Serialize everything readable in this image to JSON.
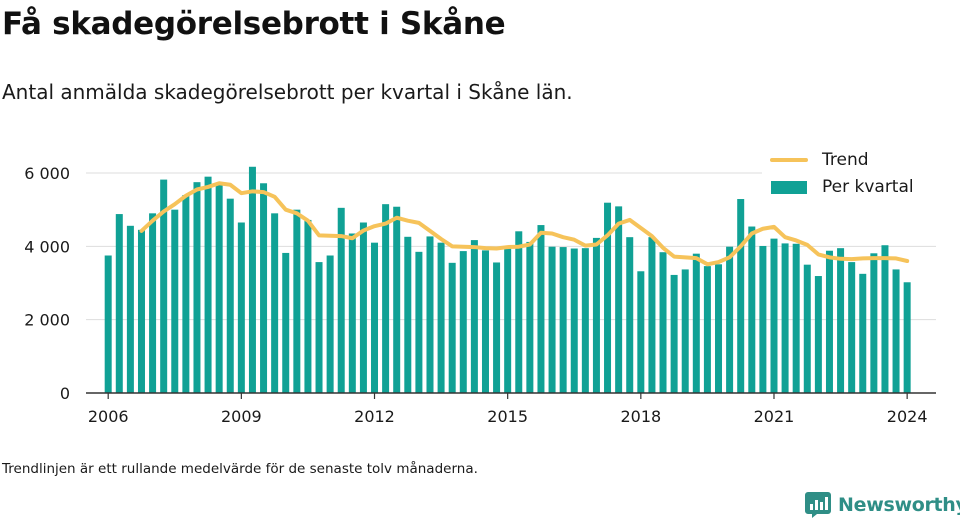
{
  "title": "Få skadegörelsebrott i Skåne",
  "subtitle": "Antal anmälda skadegörelsebrott per kvartal i Skåne län.",
  "footnote": "Trendlinjen är ett rullande medelvärde för de senaste tolv månaderna.",
  "brand": {
    "name": "Newsworthy"
  },
  "colors": {
    "bar": "#10a195",
    "trend": "#f6c35a",
    "grid": "#dddddd",
    "axis": "#333333",
    "brand": "#2f8e86"
  },
  "chart_data": {
    "type": "bar",
    "title": "Få skadegörelsebrott i Skåne",
    "xlabel": "",
    "ylabel": "",
    "ylim": [
      0,
      6000
    ],
    "xlim": [
      2005.5,
      2024.65
    ],
    "yticks": [
      0,
      2000,
      4000,
      6000
    ],
    "ytick_labels": [
      "0",
      "2 000",
      "4 000",
      "6 000"
    ],
    "xticks": [
      2006,
      2009,
      2012,
      2015,
      2018,
      2021,
      2024
    ],
    "xtick_labels": [
      "2006",
      "2009",
      "2012",
      "2015",
      "2018",
      "2021",
      "2024"
    ],
    "grid": "horizontal",
    "legend_position": "top-right",
    "series": [
      {
        "name": "Per kvartal",
        "type": "bar",
        "x": [
          2006.0,
          2006.25,
          2006.5,
          2006.75,
          2007.0,
          2007.25,
          2007.5,
          2007.75,
          2008.0,
          2008.25,
          2008.5,
          2008.75,
          2009.0,
          2009.25,
          2009.5,
          2009.75,
          2010.0,
          2010.25,
          2010.5,
          2010.75,
          2011.0,
          2011.25,
          2011.5,
          2011.75,
          2012.0,
          2012.25,
          2012.5,
          2012.75,
          2013.0,
          2013.25,
          2013.5,
          2013.75,
          2014.0,
          2014.25,
          2014.5,
          2014.75,
          2015.0,
          2015.25,
          2015.5,
          2015.75,
          2016.0,
          2016.25,
          2016.5,
          2016.75,
          2017.0,
          2017.25,
          2017.5,
          2017.75,
          2018.0,
          2018.25,
          2018.5,
          2018.75,
          2019.0,
          2019.25,
          2019.5,
          2019.75,
          2020.0,
          2020.25,
          2020.5,
          2020.75,
          2021.0,
          2021.25,
          2021.5,
          2021.75,
          2022.0,
          2022.25,
          2022.5,
          2022.75,
          2023.0,
          2023.25,
          2023.5,
          2023.75,
          2024.0
        ],
        "values": [
          3750,
          4880,
          4560,
          4450,
          4900,
          5820,
          5000,
          5400,
          5750,
          5900,
          5700,
          5300,
          4650,
          6170,
          5720,
          4900,
          3820,
          5000,
          4720,
          3570,
          3750,
          5050,
          4350,
          4650,
          4100,
          5150,
          5080,
          4260,
          3850,
          4270,
          4100,
          3550,
          3870,
          4170,
          3890,
          3560,
          3960,
          4410,
          4120,
          4580,
          3990,
          3980,
          3940,
          3950,
          4230,
          5190,
          5090,
          4250,
          3320,
          4250,
          3840,
          3220,
          3370,
          3800,
          3460,
          3510,
          3990,
          5290,
          4540,
          4010,
          4210,
          4080,
          4070,
          3500,
          3190,
          3880,
          3950,
          3570,
          3250,
          3810,
          4030,
          3370,
          3020
        ]
      },
      {
        "name": "Trend",
        "type": "line",
        "x": [
          2006.75,
          2007.0,
          2007.25,
          2007.5,
          2007.75,
          2008.0,
          2008.25,
          2008.5,
          2008.75,
          2009.0,
          2009.25,
          2009.5,
          2009.75,
          2010.0,
          2010.25,
          2010.5,
          2010.75,
          2011.0,
          2011.25,
          2011.5,
          2011.75,
          2012.0,
          2012.25,
          2012.5,
          2012.75,
          2013.0,
          2013.25,
          2013.5,
          2013.75,
          2014.0,
          2014.25,
          2014.5,
          2014.75,
          2015.0,
          2015.25,
          2015.5,
          2015.75,
          2016.0,
          2016.25,
          2016.5,
          2016.75,
          2017.0,
          2017.25,
          2017.5,
          2017.75,
          2018.0,
          2018.25,
          2018.5,
          2018.75,
          2019.0,
          2019.25,
          2019.5,
          2019.75,
          2020.0,
          2020.25,
          2020.5,
          2020.75,
          2021.0,
          2021.25,
          2021.5,
          2021.75,
          2022.0,
          2022.25,
          2022.5,
          2022.75,
          2023.0,
          2023.25,
          2023.5,
          2023.75,
          2024.0
        ],
        "values": [
          4420,
          4700,
          4950,
          5150,
          5380,
          5550,
          5620,
          5720,
          5680,
          5450,
          5500,
          5480,
          5350,
          5000,
          4900,
          4700,
          4300,
          4290,
          4280,
          4220,
          4430,
          4550,
          4620,
          4780,
          4700,
          4640,
          4420,
          4200,
          4000,
          3990,
          3980,
          3950,
          3940,
          3980,
          3990,
          4050,
          4370,
          4350,
          4250,
          4180,
          4020,
          4050,
          4300,
          4620,
          4720,
          4500,
          4280,
          3960,
          3720,
          3700,
          3680,
          3510,
          3570,
          3700,
          4000,
          4350,
          4480,
          4530,
          4250,
          4160,
          4040,
          3780,
          3700,
          3660,
          3650,
          3670,
          3680,
          3680,
          3670,
          3600
        ]
      }
    ]
  }
}
